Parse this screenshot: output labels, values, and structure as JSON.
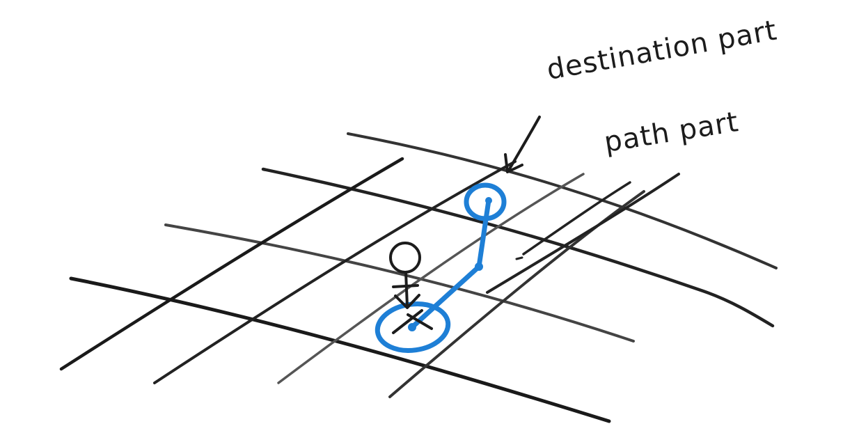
{
  "labels": {
    "destination": "destination part",
    "path": "path part"
  },
  "icons": {
    "character": "stick-figure-icon",
    "position_marker": "x-mark-icon"
  },
  "colors": {
    "ink": "#1c1c1c",
    "highlight": "#1e7fd6",
    "background": "#ffffff"
  }
}
